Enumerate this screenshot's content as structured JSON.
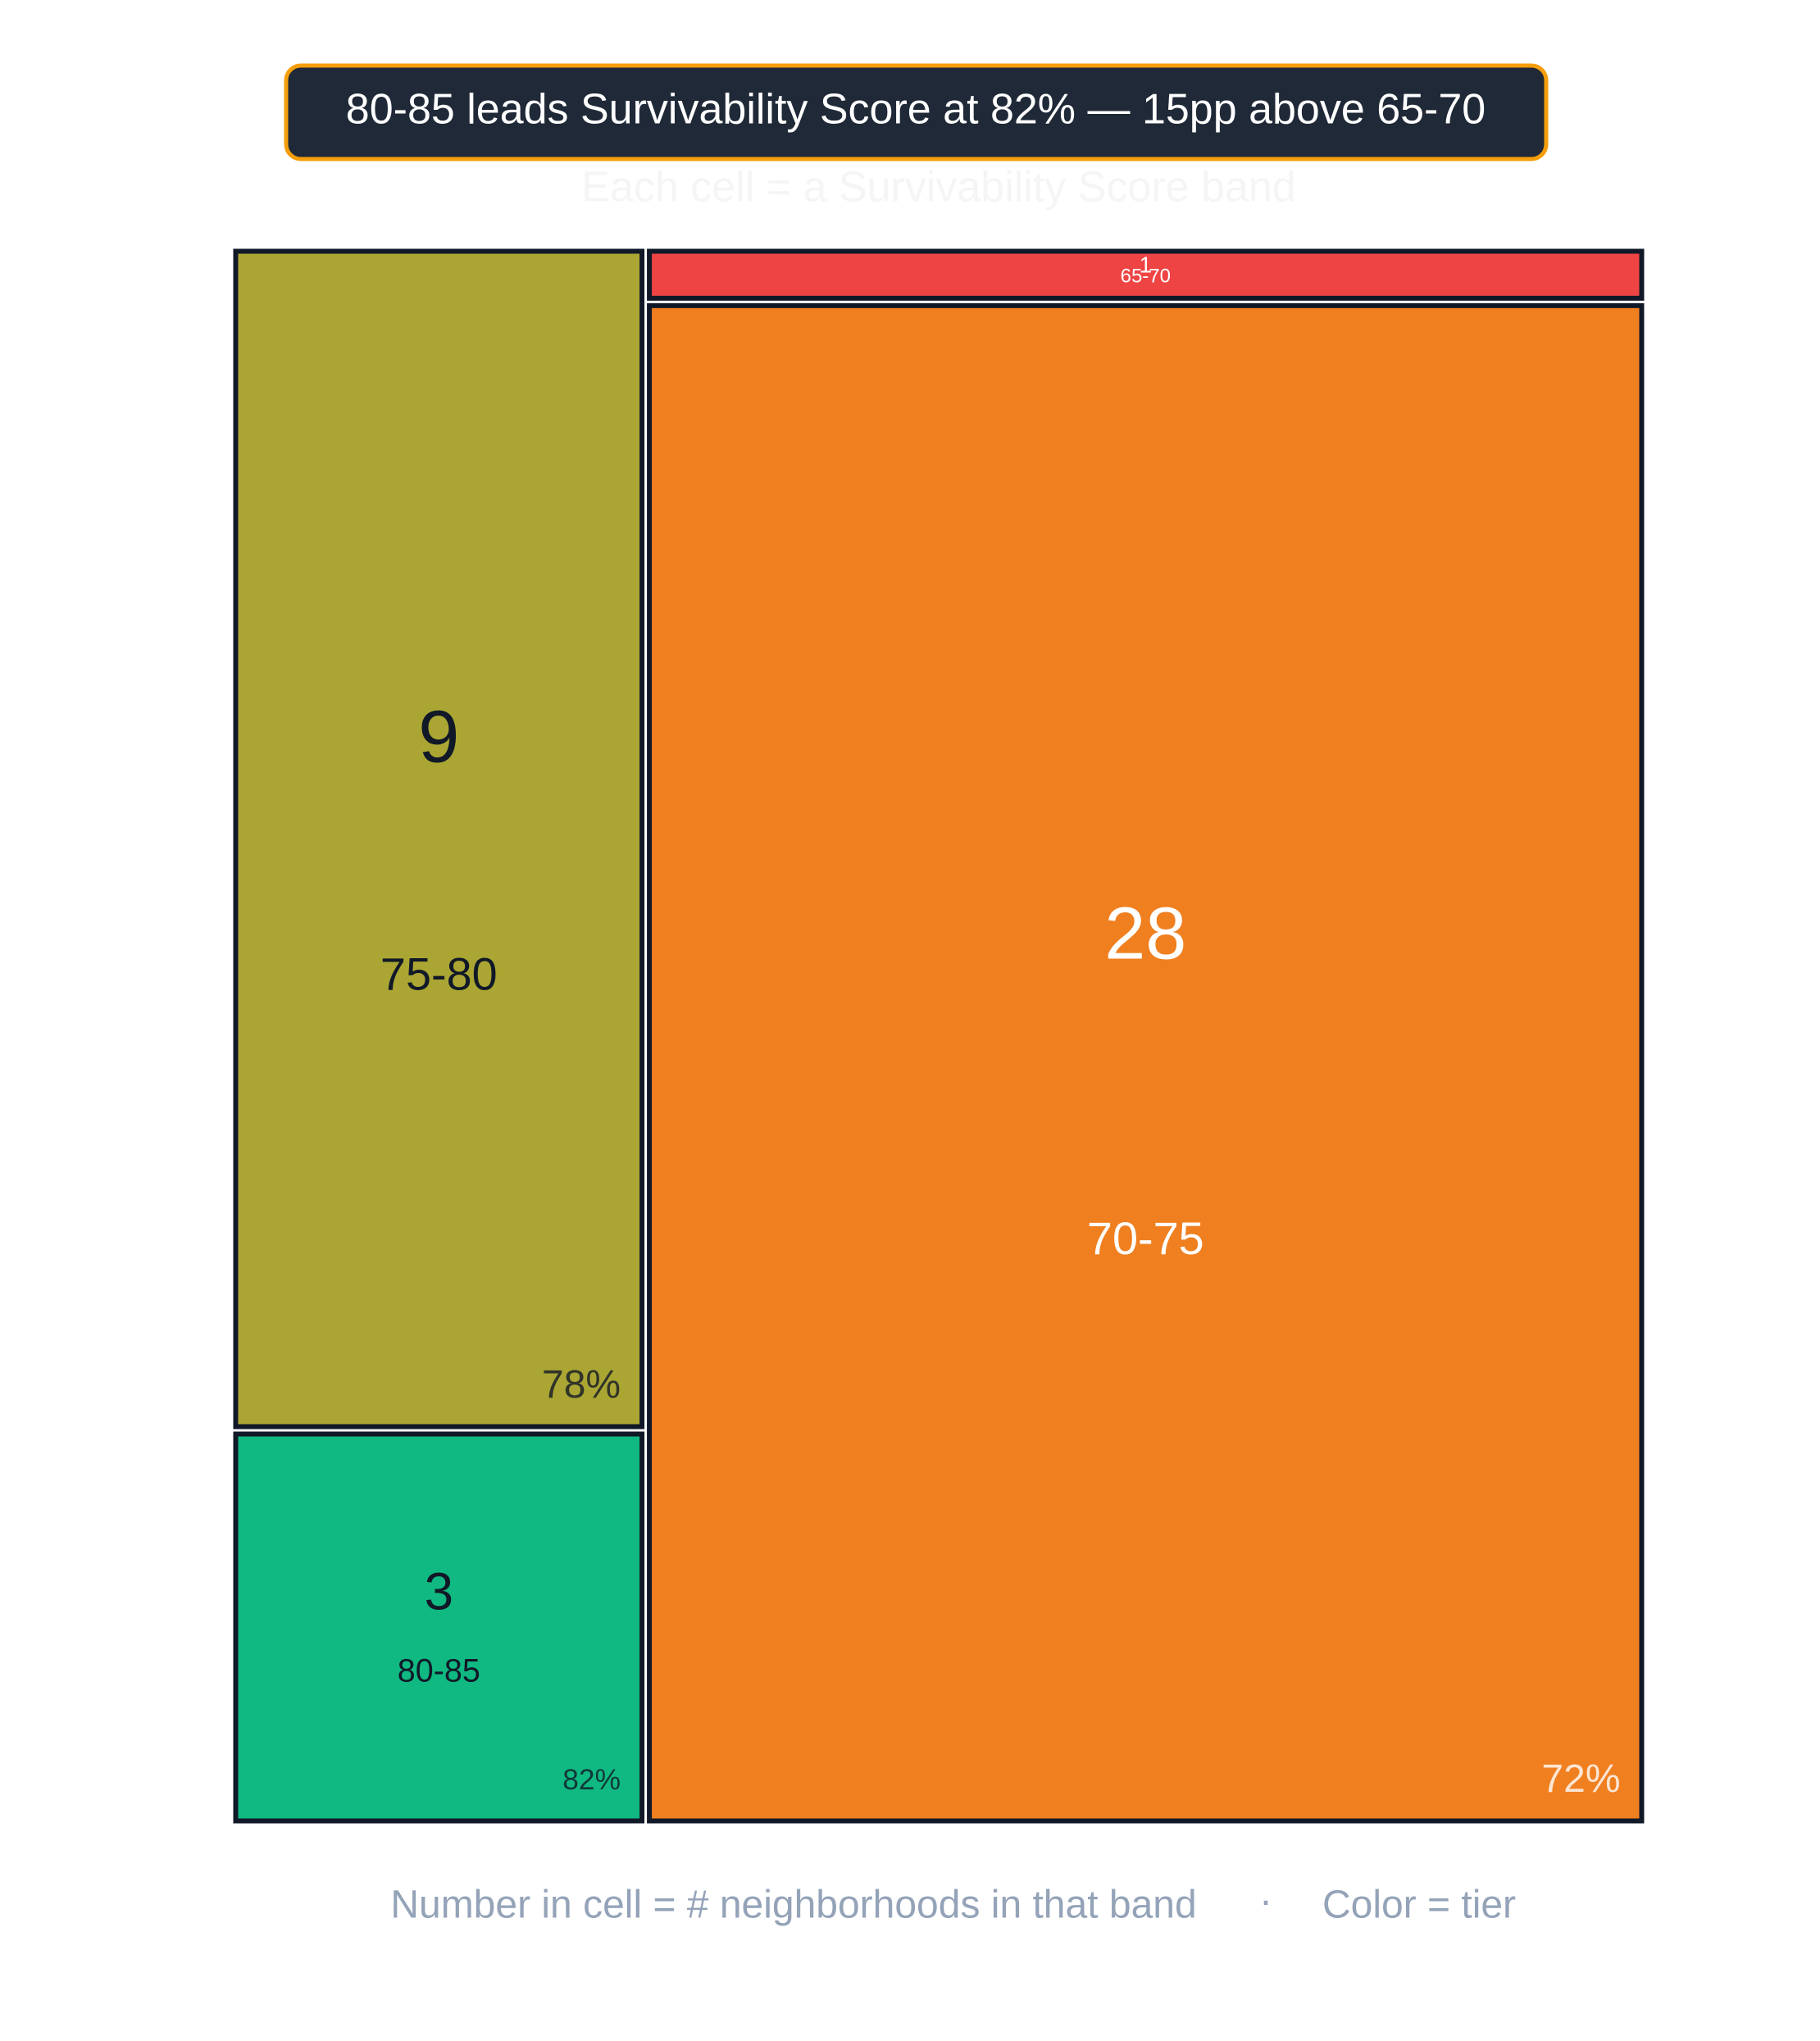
{
  "chart_data": {
    "type": "treemap",
    "title": "80-85 leads Survivability Score at 82% — 15pp above 65-70",
    "subtitle": "Each cell = a Survivability Score band",
    "footer": [
      "Number in cell = # neighborhoods in that band",
      "·",
      "Color = tier"
    ],
    "categories": [
      "75-80",
      "80-85",
      "65-70",
      "70-75"
    ],
    "values": [
      9,
      3,
      1,
      28
    ],
    "scores": [
      78,
      82,
      null,
      72
    ],
    "score_labels": [
      "78%",
      "82%",
      null,
      "72%"
    ],
    "colors": [
      "#aba633",
      "#10b981",
      "#ef4444",
      "#f07f20"
    ],
    "text_colors": [
      "#111827",
      "#111827",
      "#ffffff",
      "#ffffff"
    ]
  }
}
